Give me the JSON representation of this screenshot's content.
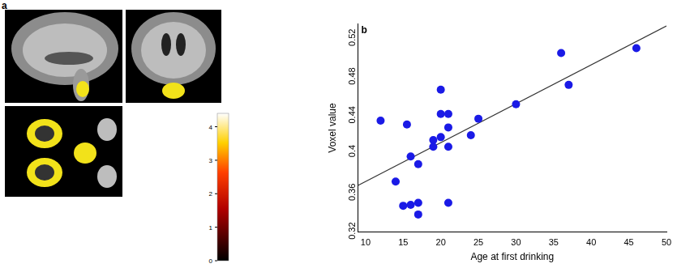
{
  "chart_data": {
    "type": "scatter",
    "annotations": [
      "b"
    ],
    "x_label": "Age at first drinking",
    "y_label": "Voxel value",
    "xlim": [
      9,
      50
    ],
    "xticks": [
      10,
      15,
      20,
      25,
      30,
      35,
      40,
      45,
      50
    ],
    "ylim": [
      0.31,
      0.525
    ],
    "yticks": [
      0.32,
      0.36,
      0.4,
      0.44,
      0.48,
      0.52
    ],
    "grid": false,
    "series": [
      {
        "type": "scatter",
        "color": "#1a1ae6",
        "marker": "circle",
        "x": [
          12,
          15.5,
          14,
          15,
          16,
          17,
          17,
          16,
          17,
          19,
          19,
          20,
          20,
          20,
          21,
          21,
          21,
          21,
          24,
          25,
          30,
          36,
          37,
          46
        ],
        "values": [
          0.425,
          0.421,
          0.362,
          0.337,
          0.338,
          0.34,
          0.328,
          0.388,
          0.38,
          0.398,
          0.405,
          0.408,
          0.457,
          0.432,
          0.432,
          0.418,
          0.398,
          0.34,
          0.41,
          0.427,
          0.442,
          0.495,
          0.462,
          0.5
        ]
      },
      {
        "type": "line",
        "color": "#333333",
        "line_style": "solid",
        "x": [
          9,
          50
        ],
        "values": [
          0.358,
          0.523
        ]
      }
    ]
  },
  "figure_panel": {
    "label": "a",
    "colorbar": {
      "range": [
        0,
        4.4
      ],
      "ticks": [
        0,
        1,
        2,
        3,
        4
      ]
    }
  }
}
